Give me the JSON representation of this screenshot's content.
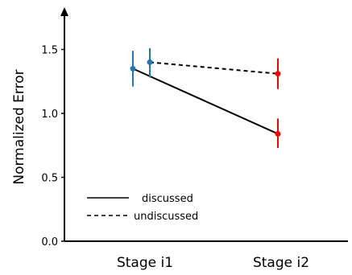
{
  "chart_data": {
    "type": "line",
    "title": "",
    "xlabel": "",
    "ylabel": "Normalized Error",
    "categories": [
      "Stage i1",
      "Stage i2"
    ],
    "yticks": [
      "0.0",
      "0.5",
      "1.0",
      "1.5"
    ],
    "ylim": [
      0,
      1.75
    ],
    "grid": false,
    "legend_position": "bottom-left",
    "series": [
      {
        "name": "discussed",
        "line_style": "solid",
        "points": [
          {
            "category": "Stage i1",
            "y": 1.35,
            "err_low": 1.21,
            "err_high": 1.49,
            "color": "#1f77b4"
          },
          {
            "category": "Stage i2",
            "y": 0.84,
            "err_low": 0.73,
            "err_high": 0.96,
            "color": "#ff0000"
          }
        ]
      },
      {
        "name": "undiscussed",
        "line_style": "dashed",
        "points": [
          {
            "category": "Stage i1",
            "y": 1.4,
            "err_low": 1.28,
            "err_high": 1.51,
            "color": "#1f77b4"
          },
          {
            "category": "Stage i2",
            "y": 1.31,
            "err_low": 1.19,
            "err_high": 1.43,
            "color": "#ff0000"
          }
        ]
      }
    ]
  }
}
